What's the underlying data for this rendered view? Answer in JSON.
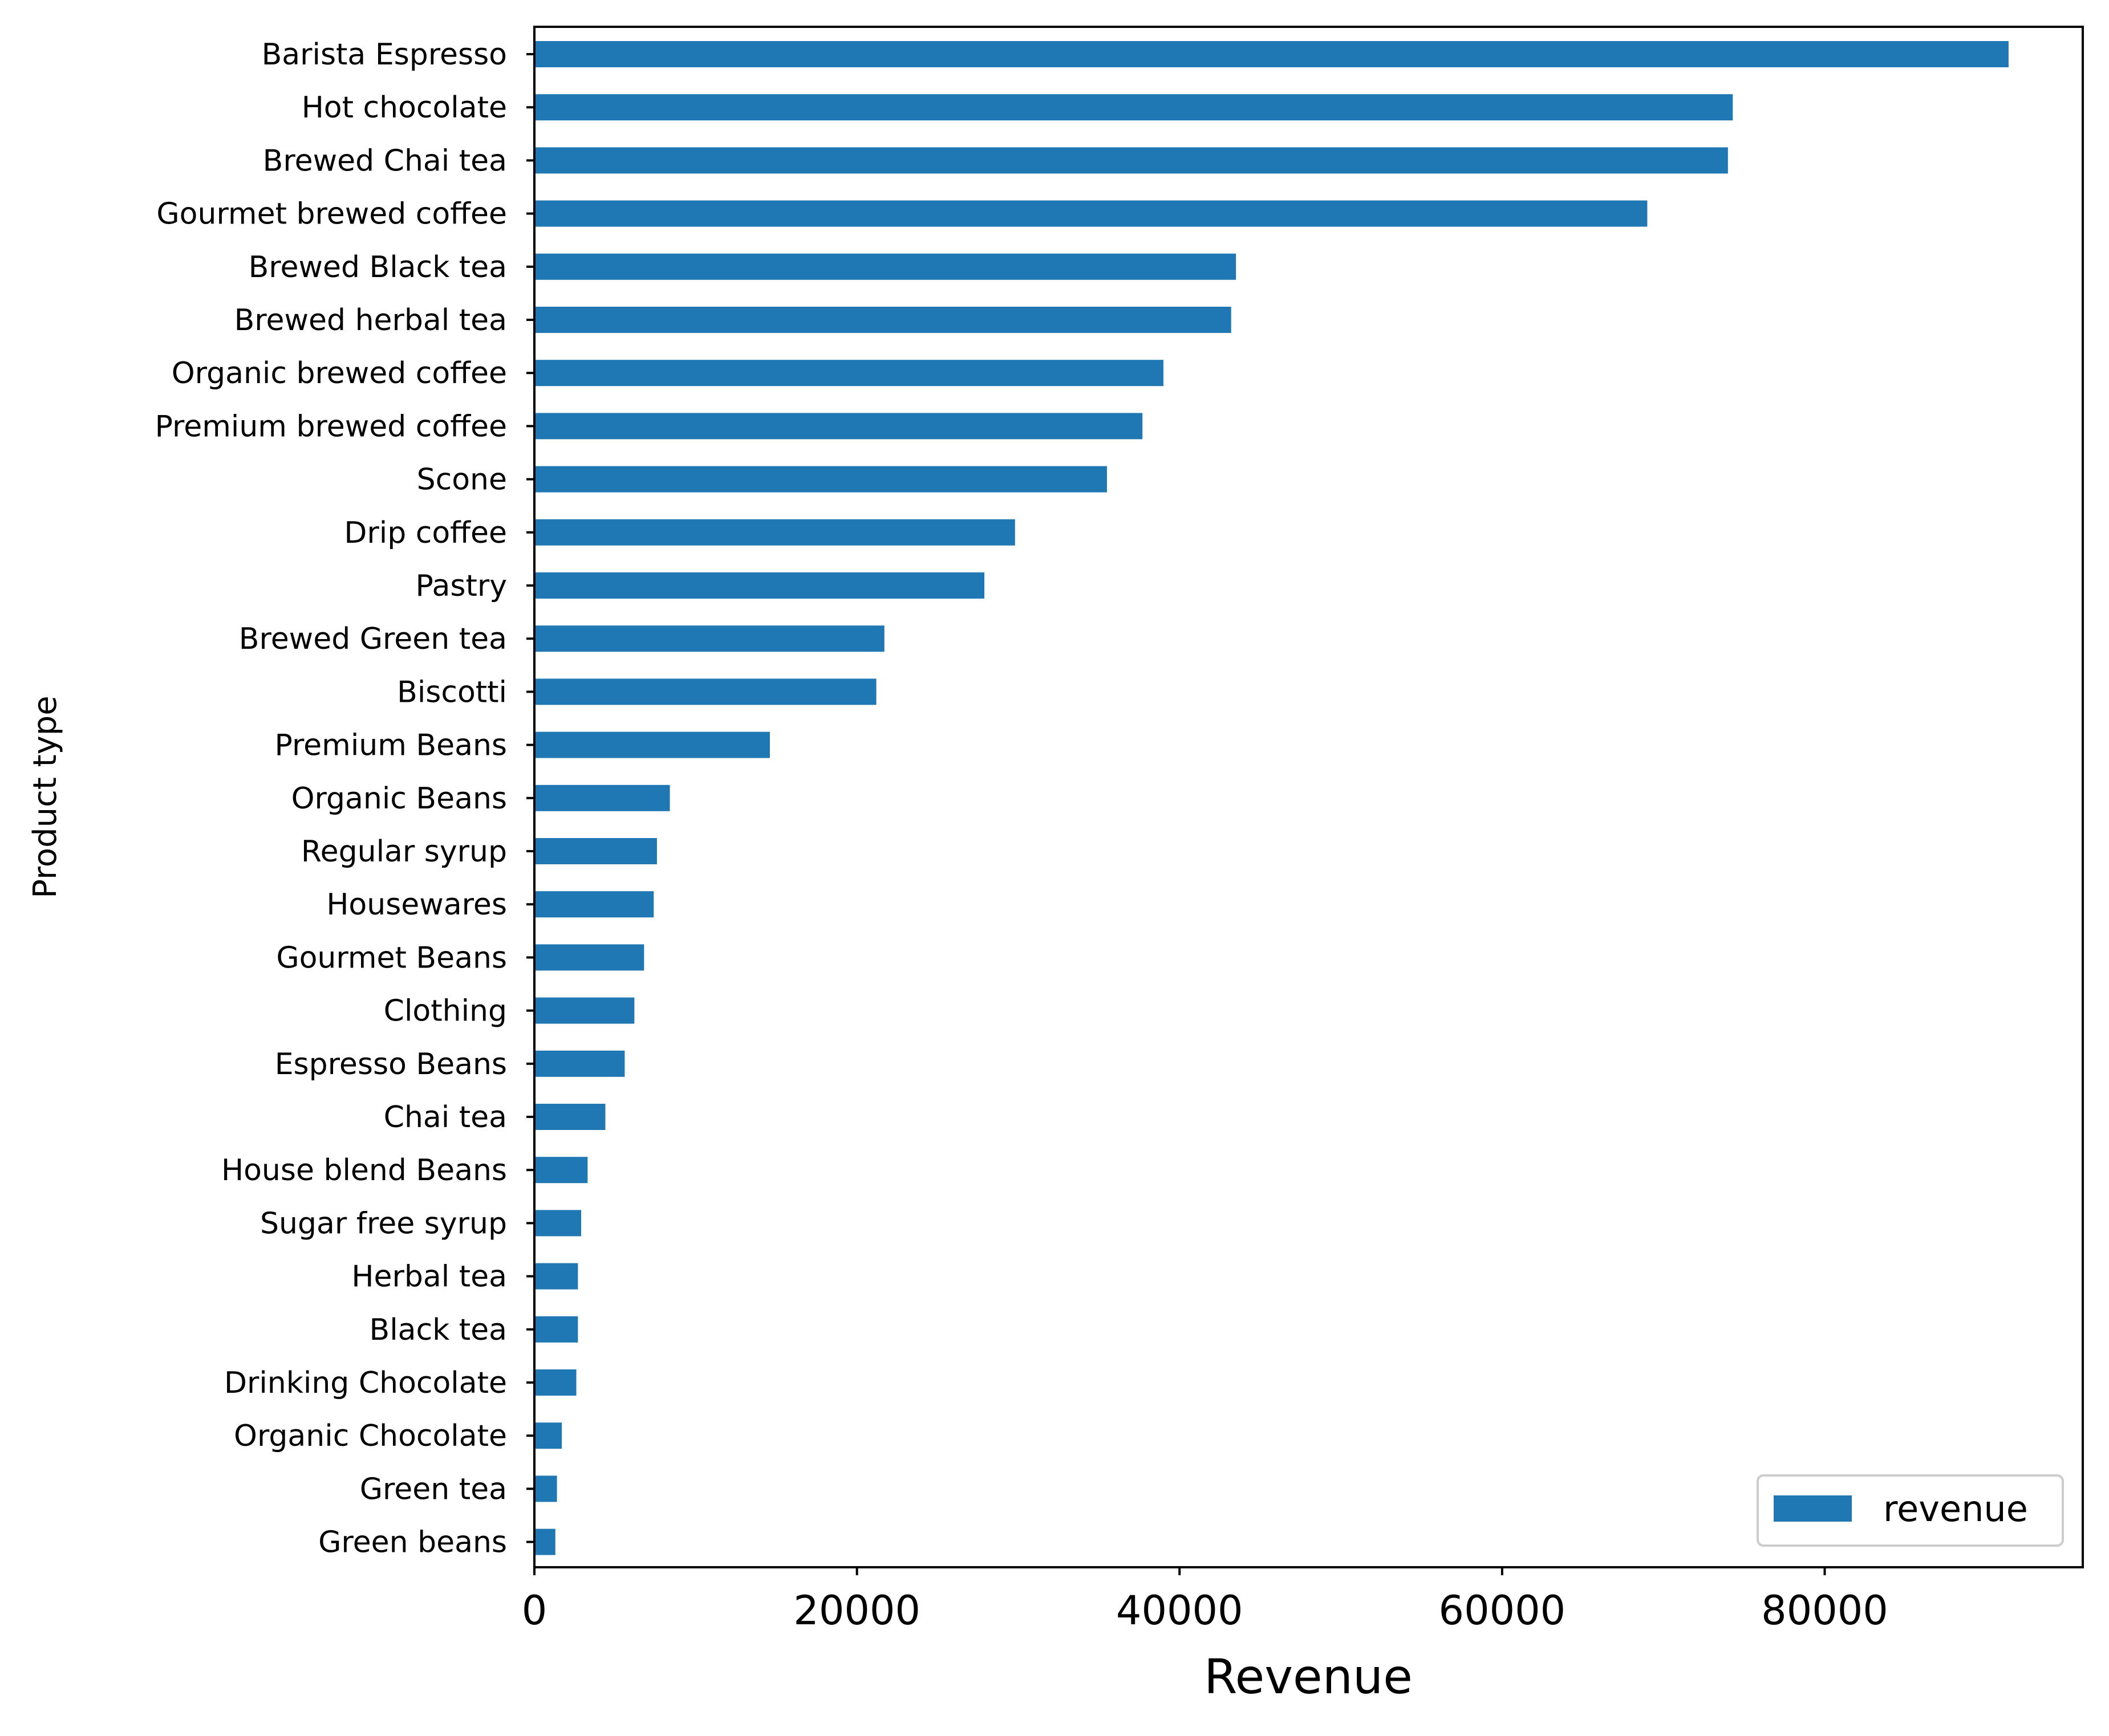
{
  "chart_data": {
    "type": "bar",
    "orientation": "horizontal",
    "xlabel": "Revenue",
    "ylabel": "Product type",
    "xlim": [
      0,
      96000
    ],
    "xticks": [
      0,
      20000,
      40000,
      60000,
      80000
    ],
    "grid": false,
    "legend": {
      "placement": "bottom-right",
      "entries": [
        "revenue"
      ]
    },
    "bar_color": "#1f77b4",
    "categories": [
      "Barista Espresso",
      "Hot chocolate",
      "Brewed Chai tea",
      "Gourmet brewed coffee",
      "Brewed Black tea",
      "Brewed herbal tea",
      "Organic brewed coffee",
      "Premium brewed coffee",
      "Scone",
      "Drip coffee",
      "Pastry",
      "Brewed Green tea",
      "Biscotti",
      "Premium Beans",
      "Organic Beans",
      "Regular syrup",
      "Housewares",
      "Gourmet Beans",
      "Clothing",
      "Espresso Beans",
      "Chai tea",
      "House blend Beans",
      "Sugar free syrup",
      "Herbal tea",
      "Black tea",
      "Drinking Chocolate",
      "Organic Chocolate",
      "Green tea",
      "Green beans"
    ],
    "series": [
      {
        "name": "revenue",
        "values": [
          91400,
          74300,
          74000,
          69000,
          43500,
          43200,
          39000,
          37700,
          35500,
          29800,
          27900,
          21700,
          21200,
          14600,
          8400,
          7600,
          7400,
          6800,
          6200,
          5600,
          4400,
          3300,
          2900,
          2700,
          2700,
          2600,
          1700,
          1400,
          1300
        ]
      }
    ]
  }
}
